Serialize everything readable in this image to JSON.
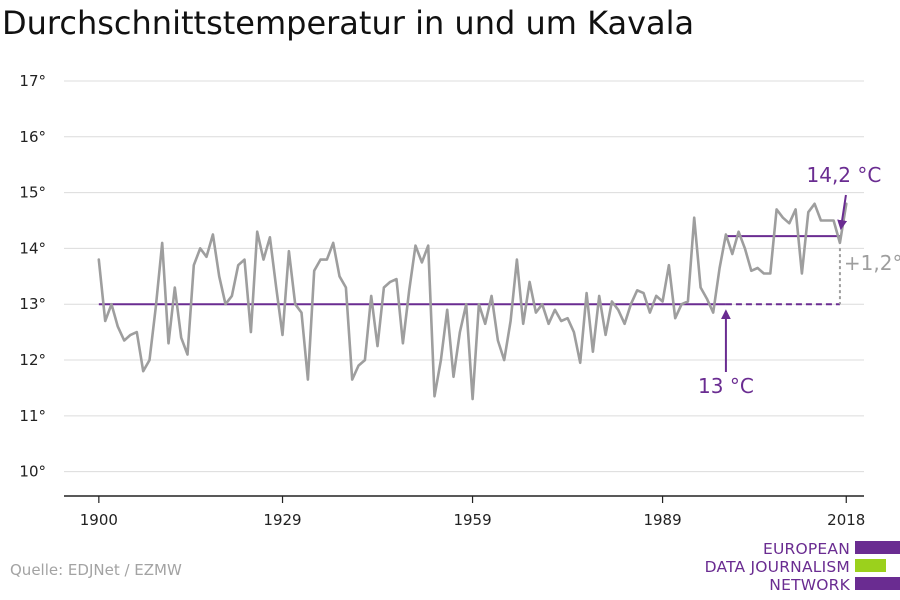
{
  "title": "Durchschnittstemperatur in und um Kavala",
  "source": "Quelle: EDJNet / EZMW",
  "logo": {
    "lines": [
      "EUROPEAN",
      "DATA JOURNALISM",
      "NETWORK"
    ],
    "colors": [
      "#6a2c91",
      "#9bd11c",
      "#6a2c91"
    ]
  },
  "colors": {
    "series": "#9e9e9e",
    "reference": "#6a2c91",
    "annotation": "#6a2c91",
    "difference": "#9e9e9e",
    "grid": "#dcdcdc",
    "axis": "#222222"
  },
  "chart_data": {
    "type": "line",
    "title": "Durchschnittstemperatur in und um Kavala",
    "xlabel": "",
    "ylabel": "",
    "x_ticks": [
      1900,
      1929,
      1959,
      1989,
      2018
    ],
    "y_ticks": [
      10,
      11,
      12,
      13,
      14,
      15,
      16,
      17
    ],
    "y_tick_labels": [
      "10°",
      "11°",
      "12°",
      "13°",
      "14°",
      "15°",
      "16°",
      "17°"
    ],
    "xlim": [
      1894.5,
      2020.8
    ],
    "ylim": [
      9.6,
      17.0
    ],
    "grid": "horizontal",
    "series": [
      {
        "x": [
          1900,
          1901,
          1902,
          1903,
          1904,
          1905,
          1906,
          1907,
          1908,
          1909,
          1910,
          1911,
          1912,
          1913,
          1914,
          1915,
          1916,
          1917,
          1918,
          1919,
          1920,
          1921,
          1922,
          1923,
          1924,
          1925,
          1926,
          1927,
          1928,
          1929,
          1930,
          1931,
          1932,
          1933,
          1934,
          1935,
          1936,
          1937,
          1938,
          1939,
          1940,
          1941,
          1942,
          1943,
          1944,
          1945,
          1946,
          1947,
          1948,
          1949,
          1950,
          1951,
          1952,
          1953,
          1954,
          1955,
          1956,
          1957,
          1958,
          1959,
          1960,
          1961,
          1962,
          1963,
          1964,
          1965,
          1966,
          1967,
          1968,
          1969,
          1970,
          1971,
          1972,
          1973,
          1974,
          1975,
          1976,
          1977,
          1978,
          1979,
          1980,
          1981,
          1982,
          1983,
          1984,
          1985,
          1986,
          1987,
          1988,
          1989,
          1990,
          1991,
          1992,
          1993,
          1994,
          1995,
          1996,
          1997,
          1998,
          1999,
          2000,
          2001,
          2002,
          2003,
          2004,
          2005,
          2006,
          2007,
          2008,
          2009,
          2010,
          2011,
          2012,
          2013,
          2014,
          2015,
          2016,
          2017,
          2018
        ],
        "values": [
          13.8,
          12.7,
          13.0,
          12.6,
          12.35,
          12.45,
          12.5,
          11.8,
          12.0,
          12.95,
          14.1,
          12.3,
          13.3,
          12.4,
          12.1,
          13.7,
          14.0,
          13.85,
          14.25,
          13.5,
          13.0,
          13.15,
          13.7,
          13.8,
          12.5,
          14.3,
          13.8,
          14.2,
          13.3,
          12.45,
          13.95,
          13.0,
          12.85,
          11.65,
          13.6,
          13.8,
          13.8,
          14.1,
          13.5,
          13.3,
          11.65,
          11.9,
          12.0,
          13.15,
          12.25,
          13.3,
          13.4,
          13.45,
          12.3,
          13.25,
          14.05,
          13.75,
          14.05,
          11.35,
          12.0,
          12.9,
          11.7,
          12.5,
          13.0,
          11.3,
          13.0,
          12.65,
          13.15,
          12.35,
          12.0,
          12.7,
          13.8,
          12.65,
          13.4,
          12.85,
          13.0,
          12.65,
          12.9,
          12.7,
          12.75,
          12.5,
          11.95,
          13.2,
          12.15,
          13.15,
          12.45,
          13.05,
          12.9,
          12.65,
          13.0,
          13.25,
          13.2,
          12.85,
          13.15,
          13.05,
          13.7,
          12.75,
          13.0,
          13.05,
          14.55,
          13.3,
          13.1,
          12.85,
          13.65,
          14.25,
          13.9,
          14.3,
          14.0,
          13.6,
          13.65,
          13.55,
          13.55,
          14.7,
          14.55,
          14.45,
          14.7,
          13.55,
          14.65,
          14.8,
          14.5,
          14.5,
          14.5,
          14.1,
          14.8
        ]
      }
    ],
    "reference_lines": [
      {
        "label": "13 °C",
        "value": 13.0,
        "x_from": 1900,
        "x_to": 1999,
        "dashed_to": 2017
      },
      {
        "label": "14,2 °C",
        "value": 14.22,
        "x_from": 1999,
        "x_to": 2017
      }
    ],
    "difference_label": "+1,2°"
  }
}
